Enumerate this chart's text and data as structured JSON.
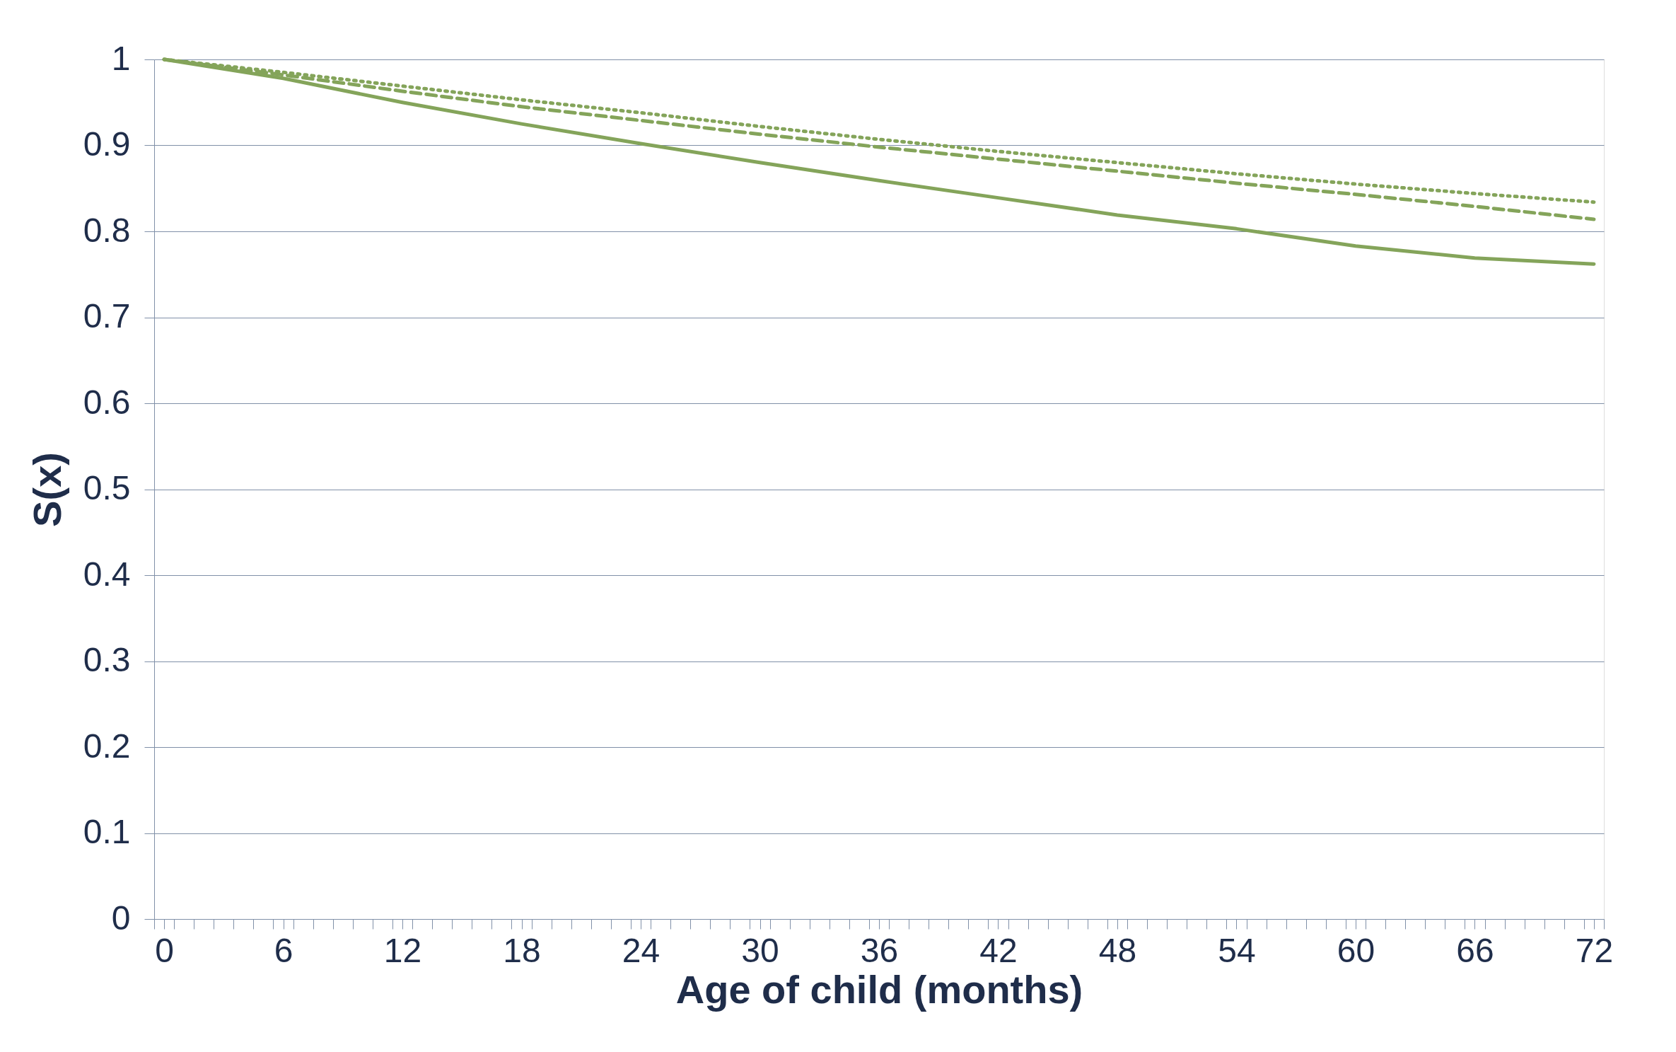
{
  "chart_data": {
    "type": "line",
    "xlabel": "Age of child (months)",
    "ylabel": "S(x)",
    "x": [
      0,
      6,
      12,
      18,
      24,
      30,
      36,
      42,
      48,
      54,
      60,
      66,
      72
    ],
    "series": [
      {
        "color": "#84a45a",
        "line_style": "solid",
        "values": [
          1.0,
          0.978,
          0.95,
          0.925,
          0.902,
          0.88,
          0.859,
          0.839,
          0.819,
          0.803,
          0.783,
          0.769,
          0.762
        ]
      },
      {
        "color": "#84a45a",
        "line_style": "dashed",
        "values": [
          1.0,
          0.982,
          0.963,
          0.945,
          0.929,
          0.913,
          0.898,
          0.884,
          0.87,
          0.856,
          0.843,
          0.829,
          0.814
        ]
      },
      {
        "color": "#84a45a",
        "line_style": "dotted",
        "values": [
          1.0,
          0.985,
          0.969,
          0.953,
          0.938,
          0.922,
          0.907,
          0.893,
          0.88,
          0.867,
          0.855,
          0.844,
          0.834
        ]
      }
    ],
    "xlim": [
      -0.5,
      72.5
    ],
    "xticks": [
      0,
      6,
      12,
      18,
      24,
      30,
      36,
      42,
      48,
      54,
      60,
      66,
      72,
      {
        "value": -0.5,
        "label": null
      },
      {
        "value": 0.5,
        "label": null
      },
      {
        "value": 1.5,
        "label": null
      },
      {
        "value": 2.5,
        "label": null
      },
      {
        "value": 3.5,
        "label": null
      },
      {
        "value": 4.5,
        "label": null
      },
      {
        "value": 5.5,
        "label": null
      },
      {
        "value": 6.5,
        "label": null
      },
      {
        "value": 7.5,
        "label": null
      },
      {
        "value": 8.5,
        "label": null
      },
      {
        "value": 9.5,
        "label": null
      },
      {
        "value": 10.5,
        "label": null
      },
      {
        "value": 11.5,
        "label": null
      },
      {
        "value": 12.5,
        "label": null
      },
      {
        "value": 13.5,
        "label": null
      },
      {
        "value": 14.5,
        "label": null
      },
      {
        "value": 15.5,
        "label": null
      },
      {
        "value": 16.5,
        "label": null
      },
      {
        "value": 17.5,
        "label": null
      },
      {
        "value": 18.5,
        "label": null
      },
      {
        "value": 19.5,
        "label": null
      },
      {
        "value": 20.5,
        "label": null
      },
      {
        "value": 21.5,
        "label": null
      },
      {
        "value": 22.5,
        "label": null
      },
      {
        "value": 23.5,
        "label": null
      },
      {
        "value": 24.5,
        "label": null
      },
      {
        "value": 25.5,
        "label": null
      },
      {
        "value": 26.5,
        "label": null
      },
      {
        "value": 27.5,
        "label": null
      },
      {
        "value": 28.5,
        "label": null
      },
      {
        "value": 29.5,
        "label": null
      },
      {
        "value": 30.5,
        "label": null
      },
      {
        "value": 31.5,
        "label": null
      },
      {
        "value": 32.5,
        "label": null
      },
      {
        "value": 33.5,
        "label": null
      },
      {
        "value": 34.5,
        "label": null
      },
      {
        "value": 35.5,
        "label": null
      },
      {
        "value": 36.5,
        "label": null
      },
      {
        "value": 37.5,
        "label": null
      },
      {
        "value": 38.5,
        "label": null
      },
      {
        "value": 39.5,
        "label": null
      },
      {
        "value": 40.5,
        "label": null
      },
      {
        "value": 41.5,
        "label": null
      },
      {
        "value": 42.5,
        "label": null
      },
      {
        "value": 43.5,
        "label": null
      },
      {
        "value": 44.5,
        "label": null
      },
      {
        "value": 45.5,
        "label": null
      },
      {
        "value": 46.5,
        "label": null
      },
      {
        "value": 47.5,
        "label": null
      },
      {
        "value": 48.5,
        "label": null
      },
      {
        "value": 49.5,
        "label": null
      },
      {
        "value": 50.5,
        "label": null
      },
      {
        "value": 51.5,
        "label": null
      },
      {
        "value": 52.5,
        "label": null
      },
      {
        "value": 53.5,
        "label": null
      },
      {
        "value": 54.5,
        "label": null
      },
      {
        "value": 55.5,
        "label": null
      },
      {
        "value": 56.5,
        "label": null
      },
      {
        "value": 57.5,
        "label": null
      },
      {
        "value": 58.5,
        "label": null
      },
      {
        "value": 59.5,
        "label": null
      },
      {
        "value": 60.5,
        "label": null
      },
      {
        "value": 61.5,
        "label": null
      },
      {
        "value": 62.5,
        "label": null
      },
      {
        "value": 63.5,
        "label": null
      },
      {
        "value": 64.5,
        "label": null
      },
      {
        "value": 65.5,
        "label": null
      },
      {
        "value": 66.5,
        "label": null
      },
      {
        "value": 67.5,
        "label": null
      },
      {
        "value": 68.5,
        "label": null
      },
      {
        "value": 69.5,
        "label": null
      },
      {
        "value": 70.5,
        "label": null
      },
      {
        "value": 71.5,
        "label": null
      },
      {
        "value": 72.5,
        "label": null
      }
    ],
    "ylim": [
      0,
      1
    ],
    "yticks": [
      0,
      0.1,
      0.2,
      0.3,
      0.4,
      0.5,
      0.6,
      0.7,
      0.8,
      0.9,
      1
    ],
    "grid": "y",
    "marker": "none"
  }
}
